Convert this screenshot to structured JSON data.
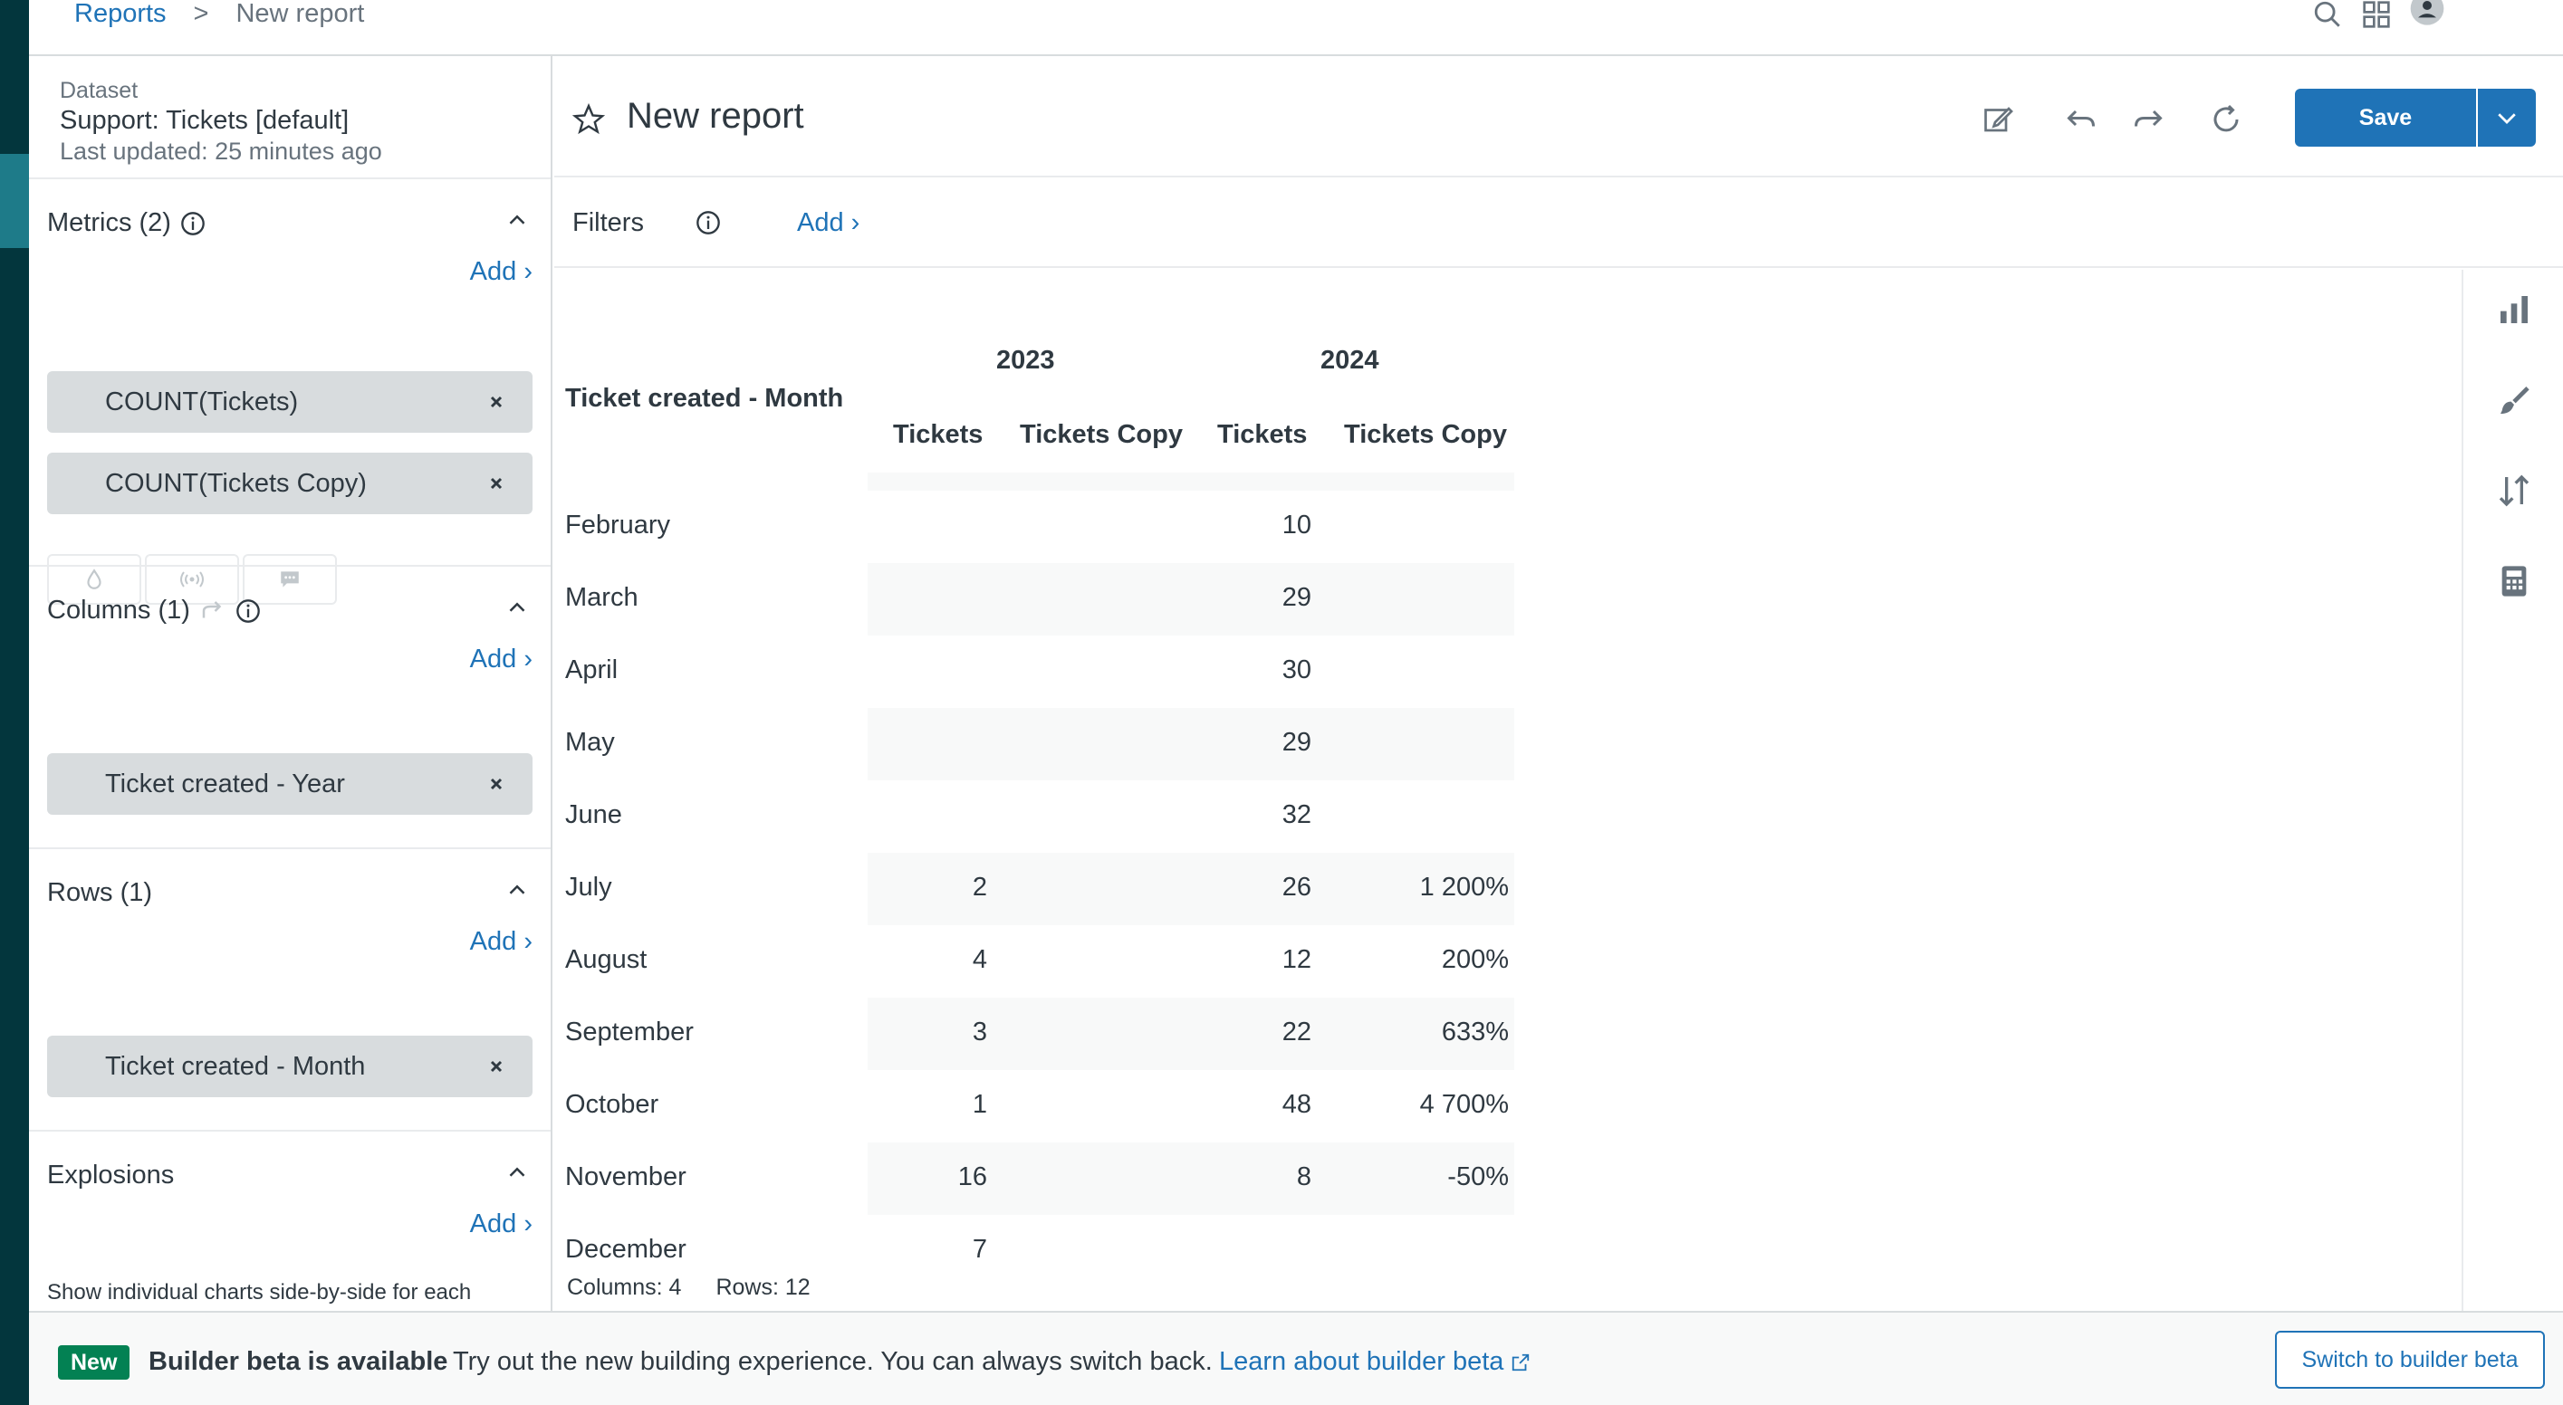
{
  "breadcrumb": {
    "root": "Reports",
    "separator": ">",
    "current": "New report"
  },
  "header_icons": [
    "search-icon",
    "apps-icon",
    "user-avatar-icon"
  ],
  "dataset": {
    "label": "Dataset",
    "name": "Support: Tickets [default]",
    "updated": "Last updated: 25 minutes ago"
  },
  "metrics": {
    "title": "Metrics (2)",
    "add": "Add",
    "items": [
      "COUNT(Tickets)",
      "COUNT(Tickets Copy)"
    ]
  },
  "columns": {
    "title": "Columns (1)",
    "add": "Add",
    "items": [
      "Ticket created - Year"
    ]
  },
  "rows": {
    "title": "Rows (1)",
    "add": "Add",
    "items": [
      "Ticket created - Month"
    ]
  },
  "explosions": {
    "title": "Explosions",
    "add": "Add",
    "description": "Show individual charts side-by-side for each"
  },
  "report": {
    "title": "New report",
    "save_label": "Save"
  },
  "filters": {
    "label": "Filters",
    "add": "Add"
  },
  "table": {
    "row_header": "Ticket created - Month",
    "years": [
      "2023",
      "2024"
    ],
    "metric_headers": [
      "Tickets",
      "Tickets Copy",
      "Tickets",
      "Tickets Copy"
    ],
    "rows": [
      {
        "month": "February",
        "values": [
          "",
          "",
          "10",
          ""
        ]
      },
      {
        "month": "March",
        "values": [
          "",
          "",
          "29",
          ""
        ]
      },
      {
        "month": "April",
        "values": [
          "",
          "",
          "30",
          ""
        ]
      },
      {
        "month": "May",
        "values": [
          "",
          "",
          "29",
          ""
        ]
      },
      {
        "month": "June",
        "values": [
          "",
          "",
          "32",
          ""
        ]
      },
      {
        "month": "July",
        "values": [
          "2",
          "",
          "26",
          "1 200%"
        ]
      },
      {
        "month": "August",
        "values": [
          "4",
          "",
          "12",
          "200%"
        ]
      },
      {
        "month": "September",
        "values": [
          "3",
          "",
          "22",
          "633%"
        ]
      },
      {
        "month": "October",
        "values": [
          "1",
          "",
          "48",
          "4 700%"
        ]
      },
      {
        "month": "November",
        "values": [
          "16",
          "",
          "8",
          "-50%"
        ]
      },
      {
        "month": "December",
        "values": [
          "7",
          "",
          "",
          ""
        ]
      }
    ],
    "footer_columns": "Columns: 4",
    "footer_rows": "Rows: 12"
  },
  "banner": {
    "badge": "New",
    "title": "Builder beta is available",
    "text": "Try out the new building experience. You can always switch back.",
    "link": "Learn about builder beta",
    "switch_button": "Switch to builder beta"
  },
  "colors": {
    "accent": "#1f73b7",
    "badge": "#038153",
    "nav_dark": "#03363d"
  }
}
